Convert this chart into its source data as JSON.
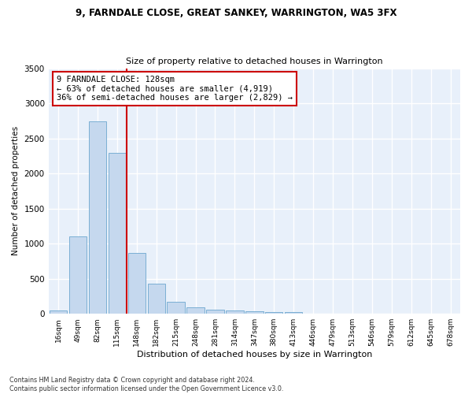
{
  "title_line1": "9, FARNDALE CLOSE, GREAT SANKEY, WARRINGTON, WA5 3FX",
  "title_line2": "Size of property relative to detached houses in Warrington",
  "xlabel": "Distribution of detached houses by size in Warrington",
  "ylabel": "Number of detached properties",
  "bar_color": "#c5d8ee",
  "bar_edge_color": "#7bafd4",
  "categories": [
    "16sqm",
    "49sqm",
    "82sqm",
    "115sqm",
    "148sqm",
    "182sqm",
    "215sqm",
    "248sqm",
    "281sqm",
    "314sqm",
    "347sqm",
    "380sqm",
    "413sqm",
    "446sqm",
    "479sqm",
    "513sqm",
    "546sqm",
    "579sqm",
    "612sqm",
    "645sqm",
    "678sqm"
  ],
  "values": [
    50,
    1100,
    2740,
    2290,
    870,
    425,
    170,
    90,
    60,
    50,
    40,
    30,
    20,
    5,
    3,
    2,
    1,
    1,
    0,
    0,
    0
  ],
  "red_line_x": 3.5,
  "annotation_text": "9 FARNDALE CLOSE: 128sqm\n← 63% of detached houses are smaller (4,919)\n36% of semi-detached houses are larger (2,829) →",
  "annotation_box_color": "#ffffff",
  "annotation_box_edge": "#cc0000",
  "red_line_color": "#cc0000",
  "ylim": [
    0,
    3500
  ],
  "yticks": [
    0,
    500,
    1000,
    1500,
    2000,
    2500,
    3000,
    3500
  ],
  "footnote1": "Contains HM Land Registry data © Crown copyright and database right 2024.",
  "footnote2": "Contains public sector information licensed under the Open Government Licence v3.0.",
  "bg_color": "#e8f0fa",
  "fig_color": "#ffffff",
  "grid_color": "#ffffff"
}
